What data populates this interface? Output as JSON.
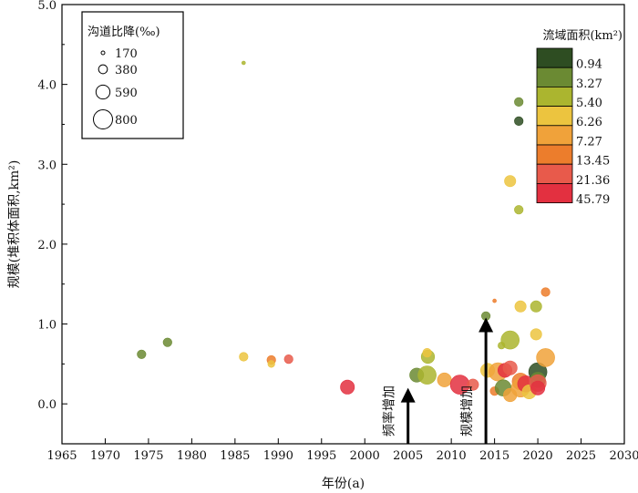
{
  "chart_data": {
    "type": "scatter",
    "xlabel": "年份(a)",
    "ylabel": "规模(堆积体面积,km²)",
    "xlim": [
      1965,
      2030
    ],
    "ylim": [
      -0.5,
      5.0
    ],
    "x_ticks": [
      "1965",
      "1970",
      "1975",
      "1980",
      "1985",
      "1990",
      "1995",
      "2000",
      "2005",
      "2010",
      "2015",
      "2020",
      "2025",
      "2030"
    ],
    "y_ticks": [
      "0.0",
      "1.0",
      "2.0",
      "3.0",
      "4.0",
      "5.0"
    ],
    "grid": false,
    "size_legend": {
      "title": "沟道比降(‰)",
      "placement": "top-left",
      "entries": [
        {
          "label": "170",
          "value": 170
        },
        {
          "label": "380",
          "value": 380
        },
        {
          "label": "590",
          "value": 590
        },
        {
          "label": "800",
          "value": 800
        }
      ]
    },
    "color_legend": {
      "title": "流域面积(km²)",
      "placement": "top-right",
      "entries": [
        {
          "label": "0.94",
          "color": "#2e4d22"
        },
        {
          "label": "3.27",
          "color": "#6b8a33"
        },
        {
          "label": "5.40",
          "color": "#abb52f"
        },
        {
          "label": "6.26",
          "color": "#ecc43f"
        },
        {
          "label": "7.27",
          "color": "#f0a23a"
        },
        {
          "label": "13.45",
          "color": "#ec7d2c"
        },
        {
          "label": "21.36",
          "color": "#e85a4b"
        },
        {
          "label": "45.79",
          "color": "#e33040"
        }
      ]
    },
    "annotations": [
      {
        "text": "频率增加",
        "x": 2005,
        "y_start": -0.5,
        "y_end": 0.2
      },
      {
        "text": "规模增加",
        "x": 2014,
        "y_start": -0.5,
        "y_end": 1.08
      }
    ],
    "points": [
      {
        "x": 1974.2,
        "y": 0.62,
        "gradient": 380,
        "color": "#6b8a33"
      },
      {
        "x": 1977.2,
        "y": 0.77,
        "gradient": 380,
        "color": "#6b8a33"
      },
      {
        "x": 1986.0,
        "y": 4.27,
        "gradient": 170,
        "color": "#abb52f"
      },
      {
        "x": 1986.0,
        "y": 0.59,
        "gradient": 380,
        "color": "#ecc43f"
      },
      {
        "x": 1989.2,
        "y": 0.55,
        "gradient": 380,
        "color": "#ec7d2c"
      },
      {
        "x": 1989.2,
        "y": 0.5,
        "gradient": 300,
        "color": "#ecc43f"
      },
      {
        "x": 1991.2,
        "y": 0.56,
        "gradient": 380,
        "color": "#e85a4b"
      },
      {
        "x": 1998.0,
        "y": 0.21,
        "gradient": 590,
        "color": "#e33040"
      },
      {
        "x": 2006.0,
        "y": 0.36,
        "gradient": 590,
        "color": "#6b8a33"
      },
      {
        "x": 2007.2,
        "y": 0.36,
        "gradient": 760,
        "color": "#abb52f"
      },
      {
        "x": 2007.3,
        "y": 0.59,
        "gradient": 560,
        "color": "#abb52f"
      },
      {
        "x": 2007.2,
        "y": 0.64,
        "gradient": 380,
        "color": "#ecc43f"
      },
      {
        "x": 2009.2,
        "y": 0.3,
        "gradient": 590,
        "color": "#f0a23a"
      },
      {
        "x": 2011.0,
        "y": 0.24,
        "gradient": 800,
        "color": "#e33040"
      },
      {
        "x": 2012.5,
        "y": 0.24,
        "gradient": 480,
        "color": "#e85a4b"
      },
      {
        "x": 2014.0,
        "y": 1.1,
        "gradient": 380,
        "color": "#6b8a33"
      },
      {
        "x": 2014.2,
        "y": 0.42,
        "gradient": 590,
        "color": "#ecc43f"
      },
      {
        "x": 2015.0,
        "y": 1.29,
        "gradient": 170,
        "color": "#ec7d2c"
      },
      {
        "x": 2015.0,
        "y": 0.16,
        "gradient": 380,
        "color": "#ec7d2c"
      },
      {
        "x": 2015.4,
        "y": 0.4,
        "gradient": 760,
        "color": "#f0a23a"
      },
      {
        "x": 2015.8,
        "y": 0.73,
        "gradient": 300,
        "color": "#abb52f"
      },
      {
        "x": 2016.0,
        "y": 0.2,
        "gradient": 680,
        "color": "#6b8a33"
      },
      {
        "x": 2016.2,
        "y": 0.42,
        "gradient": 590,
        "color": "#e33040"
      },
      {
        "x": 2016.8,
        "y": 0.8,
        "gradient": 760,
        "color": "#abb52f"
      },
      {
        "x": 2016.8,
        "y": 0.45,
        "gradient": 590,
        "color": "#e85a4b"
      },
      {
        "x": 2016.8,
        "y": 0.11,
        "gradient": 560,
        "color": "#f0a23a"
      },
      {
        "x": 2016.8,
        "y": 2.79,
        "gradient": 480,
        "color": "#ecc43f"
      },
      {
        "x": 2017.8,
        "y": 3.78,
        "gradient": 380,
        "color": "#6b8a33"
      },
      {
        "x": 2017.8,
        "y": 3.54,
        "gradient": 380,
        "color": "#2e4d22"
      },
      {
        "x": 2017.8,
        "y": 2.43,
        "gradient": 380,
        "color": "#abb52f"
      },
      {
        "x": 2018.0,
        "y": 1.22,
        "gradient": 480,
        "color": "#ecc43f"
      },
      {
        "x": 2018.0,
        "y": 0.28,
        "gradient": 700,
        "color": "#ec7d2c"
      },
      {
        "x": 2018.0,
        "y": 0.2,
        "gradient": 760,
        "color": "#f0a23a"
      },
      {
        "x": 2018.6,
        "y": 0.25,
        "gradient": 680,
        "color": "#e33040"
      },
      {
        "x": 2019.0,
        "y": 0.15,
        "gradient": 590,
        "color": "#ecc43f"
      },
      {
        "x": 2019.8,
        "y": 1.22,
        "gradient": 480,
        "color": "#abb52f"
      },
      {
        "x": 2019.8,
        "y": 0.87,
        "gradient": 480,
        "color": "#ecc43f"
      },
      {
        "x": 2020.0,
        "y": 0.4,
        "gradient": 760,
        "color": "#2e4d22"
      },
      {
        "x": 2020.0,
        "y": 0.3,
        "gradient": 640,
        "color": "#6b8a33"
      },
      {
        "x": 2020.0,
        "y": 0.26,
        "gradient": 700,
        "color": "#e85a4b"
      },
      {
        "x": 2020.0,
        "y": 0.2,
        "gradient": 590,
        "color": "#e33040"
      },
      {
        "x": 2020.9,
        "y": 1.4,
        "gradient": 380,
        "color": "#ec7d2c"
      },
      {
        "x": 2020.9,
        "y": 0.58,
        "gradient": 760,
        "color": "#f0a23a"
      }
    ]
  }
}
